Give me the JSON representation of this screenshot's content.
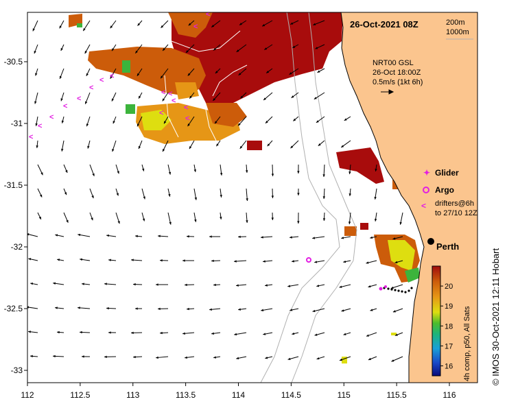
{
  "map": {
    "title": "26-Oct-2021 08Z",
    "depth_legend": [
      "200m",
      "1000m"
    ],
    "current_info": [
      "NRT00 GSL",
      "26-Oct 18:00Z",
      "0.5m/s (1kt 6h)"
    ],
    "symbol_legend": {
      "glider": "Glider",
      "argo": "Argo",
      "drifters": [
        "drifters@6h",
        "to 27/10 12Z"
      ]
    },
    "city": "Perth",
    "credit": "© IMOS 30-Oct-2021 12:11 Hobart",
    "x_ticks": [
      "112",
      "112.5",
      "113",
      "113.5",
      "114",
      "114.5",
      "115",
      "115.5",
      "116"
    ],
    "y_ticks": [
      "-30.5",
      "-31",
      "-31.5",
      "-32",
      "-32.5",
      "-33"
    ],
    "colorbar": {
      "label": "4h comp, p50, All Sats",
      "ticks": [
        "20",
        "19",
        "18",
        "17",
        "16"
      ],
      "range": [
        15.5,
        21
      ]
    },
    "colors": {
      "land": "#fbc58e",
      "sst_hot": "#a80c0c",
      "sst_warm": "#cc5c0a",
      "sst_mid": "#e69616",
      "sst_yellow": "#dede10",
      "sst_green": "#3cb43c",
      "marker": "#e21ee2"
    }
  }
}
